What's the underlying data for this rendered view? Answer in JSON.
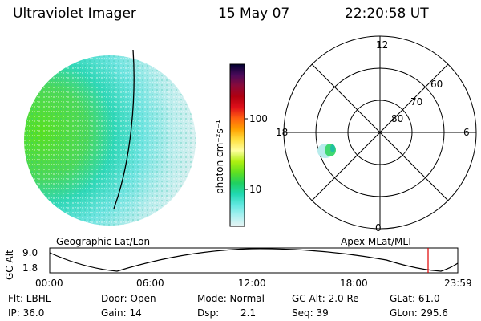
{
  "header": {
    "title": "Ultraviolet Imager",
    "date": "15 May 07",
    "time": "22:20:58 UT"
  },
  "image_panel": {
    "caption": "Geographic Lat/Lon"
  },
  "colorbar": {
    "unit_label": "photon cm⁻²s⁻¹",
    "tick_labels": [
      "100",
      "10"
    ],
    "colors": [
      "#000030",
      "#4a0a5a",
      "#8a0a3a",
      "#b00010",
      "#e0101a",
      "#ff6010",
      "#ffa000",
      "#ffe040",
      "#ffffa0",
      "#b0f010",
      "#60e020",
      "#20d060",
      "#20d8b0",
      "#60e8e0",
      "#a8f0f0",
      "#e8f4f4"
    ]
  },
  "polar_plot": {
    "caption": "Apex MLat/MLT",
    "mlt_labels": {
      "top": "12",
      "left": "18",
      "right": "6",
      "bottom": "0"
    },
    "lat_labels": [
      "60",
      "70",
      "80"
    ]
  },
  "altitude_strip": {
    "ylabel": "GC Alt",
    "y_ticks": [
      "9.0",
      "1.8"
    ],
    "x_ticks": [
      "00:00",
      "06:00",
      "12:00",
      "18:00",
      "23:59"
    ]
  },
  "info": {
    "flt": "Flt: LBHL",
    "ip": "IP: 36.0",
    "door": "Door: Open",
    "gain": "Gain: 14",
    "mode": "Mode: Normal",
    "dsp_label": "Dsp:",
    "dsp_value": "2.1",
    "gcalt": "GC Alt: 2.0 Re",
    "seq": "Seq: 39",
    "glat": "GLat: 61.0",
    "glon": "GLon: 295.6"
  }
}
